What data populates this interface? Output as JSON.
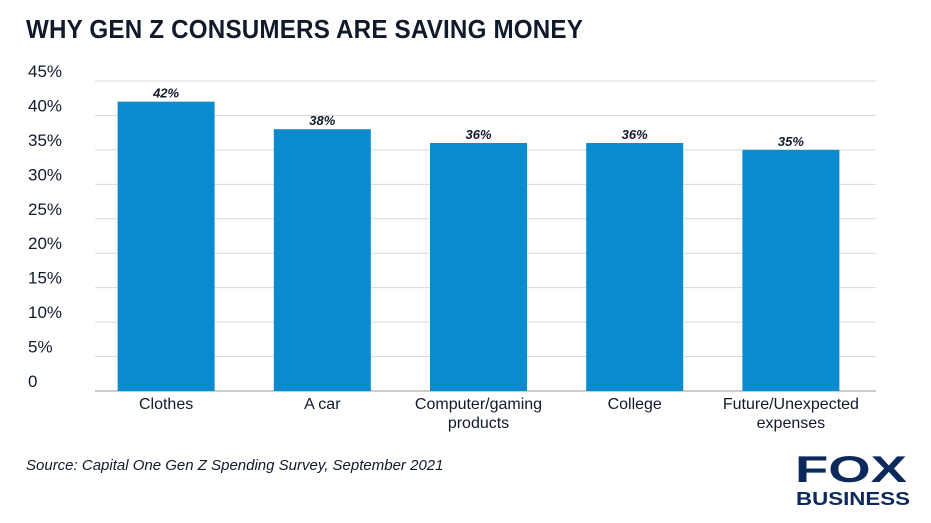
{
  "title": "WHY GEN Z CONSUMERS ARE SAVING MONEY",
  "source": "Source: Capital One Gen Z Spending Survey, September 2021",
  "logo": {
    "line1": "FOX",
    "line2": "BUSINESS",
    "color": "#0b2a5b"
  },
  "colors": {
    "bar": "#0a8bd0",
    "grid": "#d9d9d9",
    "text": "#111a2b"
  },
  "chart_data": {
    "type": "bar",
    "categories": [
      [
        "Clothes"
      ],
      [
        "A car"
      ],
      [
        "Computer/gaming",
        "products"
      ],
      [
        "College"
      ],
      [
        "Future/Unexpected",
        "expenses"
      ]
    ],
    "values": [
      42,
      38,
      36,
      36,
      35
    ],
    "data_labels": [
      "42%",
      "38%",
      "36%",
      "36%",
      "35%"
    ],
    "yticks": [
      0,
      5,
      10,
      15,
      20,
      25,
      30,
      35,
      40,
      45
    ],
    "ytick_labels": [
      "0",
      "5%",
      "10%",
      "15%",
      "20%",
      "25%",
      "30%",
      "35%",
      "40%",
      "45%"
    ],
    "ylim": [
      0,
      45
    ],
    "grid": true
  }
}
